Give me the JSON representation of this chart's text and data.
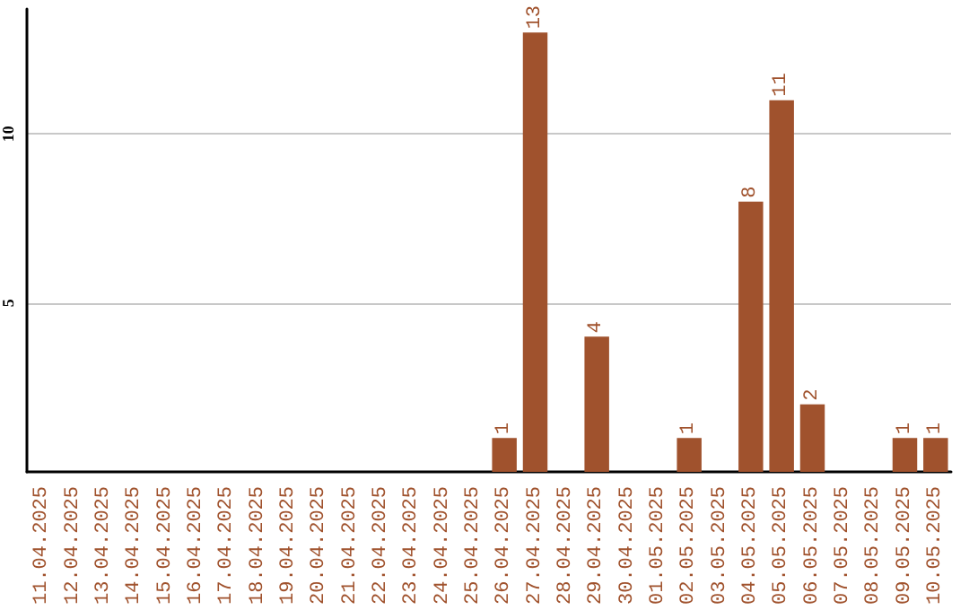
{
  "chart_data": {
    "type": "bar",
    "categories": [
      "11.04.2025",
      "12.04.2025",
      "13.04.2025",
      "14.04.2025",
      "15.04.2025",
      "16.04.2025",
      "17.04.2025",
      "18.04.2025",
      "19.04.2025",
      "20.04.2025",
      "21.04.2025",
      "22.04.2025",
      "23.04.2025",
      "24.04.2025",
      "25.04.2025",
      "26.04.2025",
      "27.04.2025",
      "28.04.2025",
      "29.04.2025",
      "30.04.2025",
      "01.05.2025",
      "02.05.2025",
      "03.05.2025",
      "04.05.2025",
      "05.05.2025",
      "06.05.2025",
      "07.05.2025",
      "08.05.2025",
      "09.05.2025",
      "10.05.2025"
    ],
    "values": [
      0,
      0,
      0,
      0,
      0,
      0,
      0,
      0,
      0,
      0,
      0,
      0,
      0,
      0,
      0,
      1,
      13,
      0,
      4,
      0,
      0,
      1,
      0,
      8,
      11,
      2,
      0,
      0,
      1,
      1
    ],
    "value_labels": [
      null,
      null,
      null,
      null,
      null,
      null,
      null,
      null,
      null,
      null,
      null,
      null,
      null,
      null,
      null,
      "1",
      "13",
      null,
      "4",
      null,
      null,
      "1",
      null,
      "8",
      "11",
      "2",
      null,
      null,
      "1",
      "1"
    ],
    "color": "#a0522d",
    "ylim": [
      0,
      13.7
    ],
    "yticks": [
      5,
      10
    ],
    "grid": "y"
  }
}
